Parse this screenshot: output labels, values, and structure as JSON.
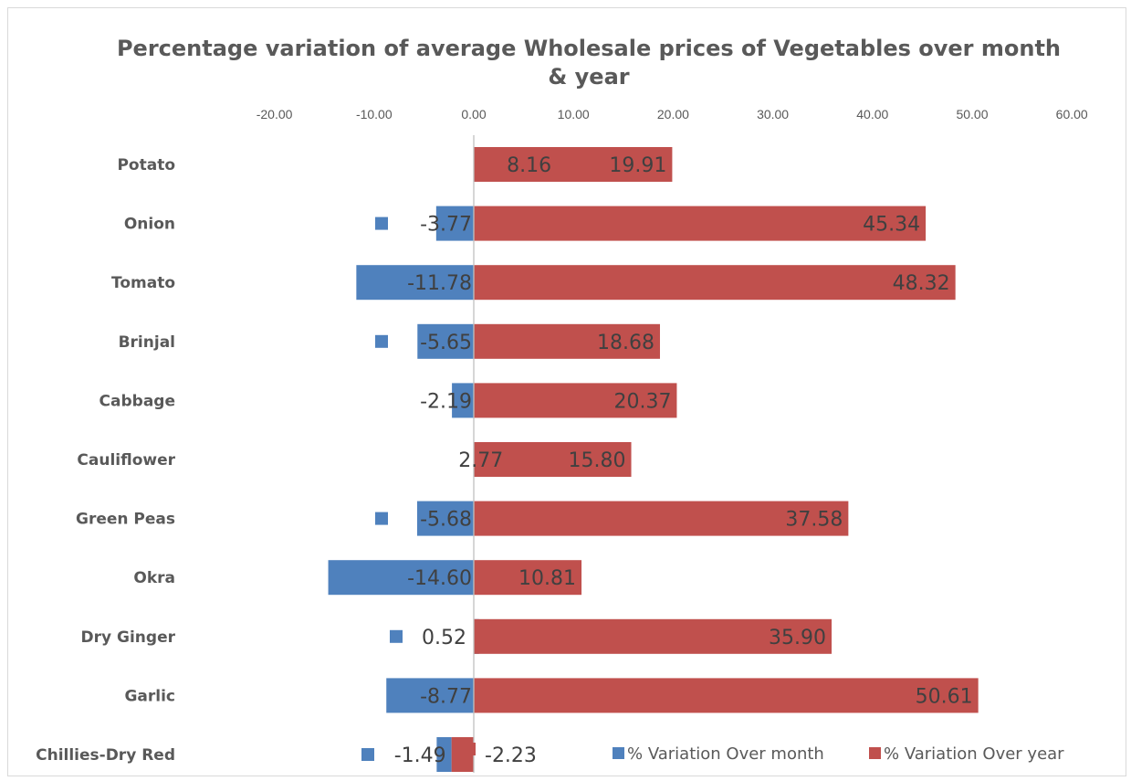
{
  "chart_data": {
    "type": "bar",
    "orientation": "horizontal",
    "title": "Percentage variation of average Wholesale prices of Vegetables over month & year",
    "x_ticks": [
      "-20.00",
      "-10.00",
      "0.00",
      "10.00",
      "20.00",
      "30.00",
      "40.00",
      "50.00",
      "60.00"
    ],
    "xlim": [
      -20,
      60
    ],
    "grid": false,
    "legend_position": "bottom-right",
    "categories": [
      "Potato",
      "Onion",
      "Tomato",
      "Brinjal",
      "Cabbage",
      "Cauliflower",
      "Green Peas",
      "Okra",
      "Dry Ginger",
      "Garlic",
      "Chillies-Dry Red"
    ],
    "series": [
      {
        "name": "% Variation Over month",
        "color": "#4f81bd",
        "values": [
          8.16,
          -3.77,
          -11.78,
          -5.65,
          -2.19,
          2.77,
          -5.68,
          -14.6,
          0.52,
          -8.77,
          -1.49
        ],
        "labels": [
          "8.16",
          "-3.77",
          "-11.78",
          "-5.65",
          "-2.19",
          "2.77",
          "-5.68",
          "-14.60",
          "0.52",
          "-8.77",
          "-1.49"
        ]
      },
      {
        "name": "% Variation Over year",
        "color": "#c0504d",
        "values": [
          19.91,
          45.34,
          48.32,
          18.68,
          20.37,
          15.8,
          37.58,
          10.81,
          35.9,
          50.61,
          -2.23
        ],
        "labels": [
          "19.91",
          "45.34",
          "48.32",
          "18.68",
          "20.37",
          "15.80",
          "37.58",
          "10.81",
          "35.90",
          "50.61",
          "-2.23"
        ]
      }
    ]
  }
}
